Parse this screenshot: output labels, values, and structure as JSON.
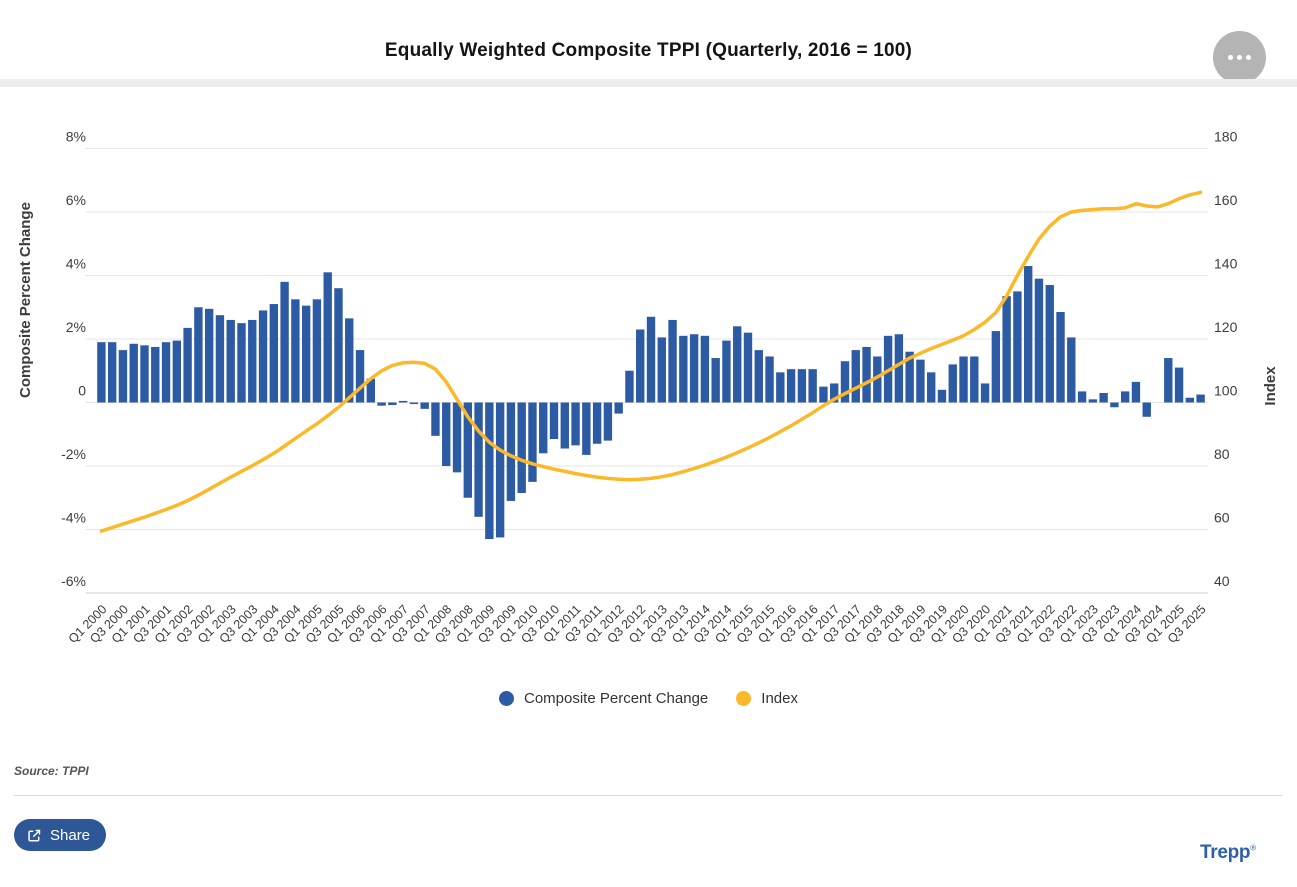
{
  "header": {
    "title": "Equally Weighted Composite TPPI (Quarterly, 2016 = 100)",
    "menu_icon": "ellipsis"
  },
  "chart_data": {
    "type": "bar+line combo",
    "title": "Equally Weighted Composite TPPI (Quarterly, 2016 = 100)",
    "grid": true,
    "x_tick_step": 2,
    "categories": [
      "Q1 2000",
      "Q2 2000",
      "Q3 2000",
      "Q4 2000",
      "Q1 2001",
      "Q2 2001",
      "Q3 2001",
      "Q4 2001",
      "Q1 2002",
      "Q2 2002",
      "Q3 2002",
      "Q4 2002",
      "Q1 2003",
      "Q2 2003",
      "Q3 2003",
      "Q4 2003",
      "Q1 2004",
      "Q2 2004",
      "Q3 2004",
      "Q4 2004",
      "Q1 2005",
      "Q2 2005",
      "Q3 2005",
      "Q4 2005",
      "Q1 2006",
      "Q2 2006",
      "Q3 2006",
      "Q4 2006",
      "Q1 2007",
      "Q2 2007",
      "Q3 2007",
      "Q4 2007",
      "Q1 2008",
      "Q2 2008",
      "Q3 2008",
      "Q4 2008",
      "Q1 2009",
      "Q2 2009",
      "Q3 2009",
      "Q4 2009",
      "Q1 2010",
      "Q2 2010",
      "Q3 2010",
      "Q4 2010",
      "Q1 2011",
      "Q2 2011",
      "Q3 2011",
      "Q4 2011",
      "Q1 2012",
      "Q2 2012",
      "Q3 2012",
      "Q4 2012",
      "Q1 2013",
      "Q2 2013",
      "Q3 2013",
      "Q4 2013",
      "Q1 2014",
      "Q2 2014",
      "Q3 2014",
      "Q4 2014",
      "Q1 2015",
      "Q2 2015",
      "Q3 2015",
      "Q4 2015",
      "Q1 2016",
      "Q2 2016",
      "Q3 2016",
      "Q4 2016",
      "Q1 2017",
      "Q2 2017",
      "Q3 2017",
      "Q4 2017",
      "Q1 2018",
      "Q2 2018",
      "Q3 2018",
      "Q4 2018",
      "Q1 2019",
      "Q2 2019",
      "Q3 2019",
      "Q4 2019",
      "Q1 2020",
      "Q2 2020",
      "Q3 2020",
      "Q4 2020",
      "Q1 2021",
      "Q2 2021",
      "Q3 2021",
      "Q4 2021",
      "Q1 2022",
      "Q2 2022",
      "Q3 2022",
      "Q4 2022",
      "Q1 2023",
      "Q2 2023",
      "Q3 2023",
      "Q4 2023",
      "Q1 2024",
      "Q2 2024",
      "Q3 2024",
      "Q4 2024",
      "Q1 2025",
      "Q2 2025",
      "Q3 2025"
    ],
    "series": [
      {
        "name": "Composite Percent Change",
        "type": "bar",
        "axis": "left",
        "color": "#2d5ba3",
        "values": [
          1.9,
          1.9,
          1.65,
          1.85,
          1.8,
          1.75,
          1.9,
          1.95,
          2.35,
          3.0,
          2.95,
          2.75,
          2.6,
          2.5,
          2.6,
          2.9,
          3.1,
          3.8,
          3.25,
          3.05,
          3.25,
          4.1,
          3.6,
          2.65,
          1.65,
          0.75,
          -0.1,
          -0.08,
          0.05,
          -0.05,
          -0.2,
          -1.05,
          -2.0,
          -2.2,
          -3.0,
          -3.6,
          -4.3,
          -4.25,
          -3.1,
          -2.85,
          -2.5,
          -1.6,
          -1.15,
          -1.45,
          -1.35,
          -1.65,
          -1.3,
          -1.2,
          -0.35,
          1.0,
          2.3,
          2.7,
          2.05,
          2.6,
          2.1,
          2.15,
          2.1,
          1.4,
          1.95,
          2.4,
          2.2,
          1.65,
          1.45,
          0.95,
          1.05,
          1.05,
          1.05,
          0.5,
          0.6,
          1.3,
          1.65,
          1.75,
          1.45,
          2.1,
          2.15,
          1.6,
          1.35,
          0.95,
          0.4,
          1.2,
          1.45,
          1.45,
          0.6,
          2.25,
          3.35,
          3.5,
          4.3,
          3.9,
          3.7,
          2.85,
          2.05,
          0.35,
          0.1,
          0.3,
          -0.15,
          0.35,
          0.65,
          -0.45,
          0.0,
          1.4,
          1.1,
          0.15,
          0.25
        ]
      },
      {
        "name": "Index",
        "type": "line",
        "axis": "right",
        "color": "#fbb829",
        "values": [
          59.5,
          60.6,
          61.7,
          62.8,
          63.9,
          65.1,
          66.3,
          67.6,
          69.1,
          70.8,
          72.7,
          74.6,
          76.5,
          78.3,
          80.1,
          82.0,
          84.0,
          86.3,
          88.7,
          91.0,
          93.3,
          95.8,
          98.5,
          101.5,
          104.5,
          107.5,
          110.0,
          111.7,
          112.5,
          112.7,
          112.3,
          110.5,
          106.5,
          101.0,
          95.5,
          91.0,
          87.5,
          85.0,
          83.2,
          81.8,
          80.7,
          79.8,
          79.0,
          78.3,
          77.6,
          77.0,
          76.5,
          76.1,
          75.8,
          75.7,
          75.8,
          76.1,
          76.6,
          77.3,
          78.2,
          79.2,
          80.3,
          81.5,
          82.8,
          84.2,
          85.7,
          87.3,
          89.0,
          90.8,
          92.7,
          94.7,
          96.8,
          99.0,
          101.0,
          102.8,
          104.5,
          106.2,
          108.0,
          110.0,
          112.0,
          114.0,
          115.5,
          117.0,
          118.3,
          119.6,
          121.0,
          123.0,
          125.3,
          128.3,
          133.5,
          140.0,
          146.0,
          151.5,
          155.5,
          158.5,
          160.0,
          160.5,
          160.8,
          161.0,
          161.0,
          161.3,
          162.6,
          161.9,
          161.6,
          162.6,
          164.2,
          165.4,
          166.2
        ]
      }
    ],
    "left_axis": {
      "title": "Composite Percent Change",
      "tick_labels": [
        "8%",
        "6%",
        "4%",
        "2%",
        "0",
        "-2%",
        "-4%",
        "-6%"
      ],
      "min": -6,
      "max": 8
    },
    "right_axis": {
      "title": "Index",
      "tick_labels": [
        "180",
        "160",
        "140",
        "120",
        "100",
        "80",
        "60",
        "40"
      ],
      "min": 40,
      "max": 180
    },
    "legend_position": "bottom"
  },
  "legend": {
    "items": [
      {
        "label": "Composite Percent Change",
        "color": "#2d5ba3"
      },
      {
        "label": "Index",
        "color": "#fbb829"
      }
    ]
  },
  "footer": {
    "source": "Source: TPPI",
    "share_label": "Share",
    "brand": "Trepp",
    "brand_mark": "®"
  }
}
